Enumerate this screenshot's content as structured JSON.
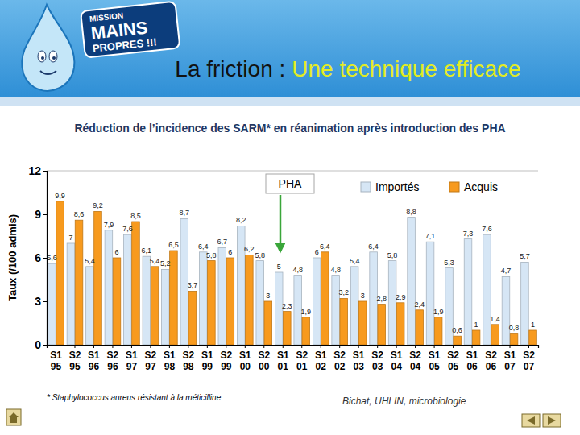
{
  "slide": {
    "heading": "La friction :",
    "heading_highlight": "Une technique efficace",
    "logo": [
      "MISSION",
      "MAINS",
      "PROPRES !!!"
    ],
    "footnote": "* Staphylococcus aureus résistant à la méticilline",
    "source": "Bichat, UHLIN, microbiologie"
  },
  "chart_data": {
    "type": "bar",
    "title": "Réduction de l’incidence des SARM* en réanimation après introduction des PHA",
    "y_label": "Taux (/100 admis)",
    "annotation": "PHA",
    "categories": [
      "S1 95",
      "S2 95",
      "S1 96",
      "S2 96",
      "S1 97",
      "S2 97",
      "S1 98",
      "S2 98",
      "S1 99",
      "S2 99",
      "S1 00",
      "S2 00",
      "S1 01",
      "S2 01",
      "S1 02",
      "S2 02",
      "S1 03",
      "S2 03",
      "S1 04",
      "S2 04",
      "S1 05",
      "S2 05",
      "S1 06",
      "S2 06",
      "S1 07",
      "S2 07"
    ],
    "series": [
      {
        "name": "Importés",
        "color": "#d6e6f5",
        "values": [
          5.6,
          7,
          5.4,
          7.9,
          7.6,
          6.1,
          5.2,
          8.7,
          6.4,
          6.7,
          8.2,
          5.8,
          5,
          4.8,
          6,
          4.8,
          5.4,
          6.4,
          5.8,
          8.8,
          7.1,
          5.3,
          7.3,
          7.6,
          4.7,
          5.7
        ],
        "value_labels": [
          "5,6",
          "7",
          "5,4",
          "7,9",
          "7,6",
          "6,1",
          "5,2",
          "8,7",
          "6,4",
          "6,7",
          "8,2",
          "5,8",
          "5",
          "4,8",
          "6",
          "4,8",
          "5,4",
          "6,4",
          "5,8",
          "8,8",
          "7,1",
          "5,3",
          "7,3",
          "7,6",
          "4,7",
          "5,7"
        ]
      },
      {
        "name": "Acquis",
        "color": "#f79a1e",
        "values": [
          9.9,
          8.6,
          9.2,
          6,
          8.5,
          5.4,
          6.5,
          3.7,
          5.8,
          6,
          6.2,
          3,
          2.3,
          1.9,
          6.4,
          3.2,
          3,
          2.8,
          2.9,
          2.4,
          1.9,
          0.6,
          1,
          1.4,
          0.8,
          1
        ],
        "value_labels": [
          "9,9",
          "8,6",
          "9,2",
          "6",
          "8,5",
          "5,4",
          "6,5",
          "3,7",
          "5,8",
          "6",
          "6,2",
          "3",
          "2,3",
          "1,9",
          "6,4",
          "3,2",
          "3",
          "2,8",
          "2,9",
          "2,4",
          "1,9",
          "0,6",
          "1",
          "1,4",
          "0,8",
          "1"
        ]
      }
    ],
    "ylim": [
      0,
      12
    ],
    "yticks": [
      0,
      3,
      6,
      9,
      12
    ],
    "grid": false,
    "legend": "top-right",
    "data_labels": true
  }
}
